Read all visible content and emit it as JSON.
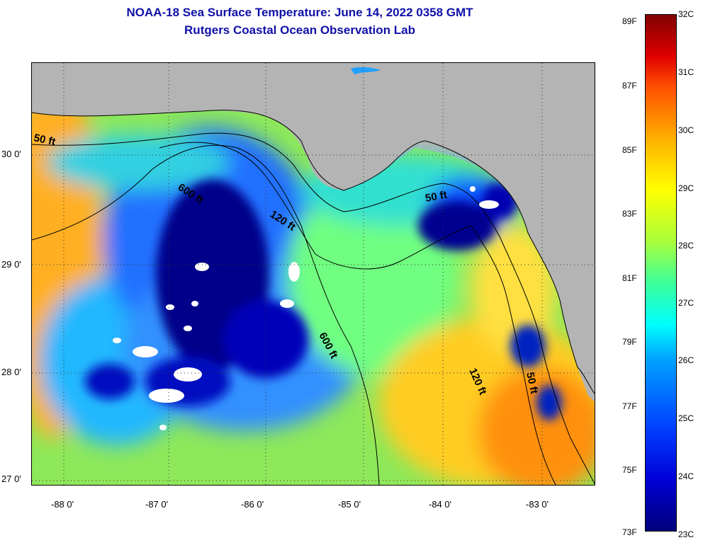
{
  "title": {
    "line1": "NOAA-18 Sea Surface Temperature:  June 14, 2022 0358 GMT",
    "line2": "Rutgers Coastal Ocean Observation Lab"
  },
  "map": {
    "contours": [
      {
        "id": "c1",
        "label": "50 ft"
      },
      {
        "id": "c2",
        "label": "600 ft"
      },
      {
        "id": "c3",
        "label": "120 ft"
      },
      {
        "id": "c4",
        "label": "50 ft"
      },
      {
        "id": "c5",
        "label": "600 ft"
      },
      {
        "id": "c6",
        "label": "120 ft"
      },
      {
        "id": "c7",
        "label": "50 ft"
      }
    ],
    "lat_labels": [
      "30 0'",
      "29 0'",
      "28 0'",
      "27 0'"
    ],
    "lon_labels": [
      "-88 0'",
      "-87 0'",
      "-86 0'",
      "-85 0'",
      "-84 0'",
      "-83 0'"
    ]
  },
  "colorbar": {
    "f_labels": [
      "89F",
      "87F",
      "85F",
      "83F",
      "81F",
      "79F",
      "77F",
      "75F",
      "73F"
    ],
    "c_labels": [
      "32C",
      "31C",
      "30C",
      "29C",
      "28C",
      "27C",
      "26C",
      "25C",
      "24C",
      "23C"
    ]
  },
  "colors": {
    "land": "#b4b4b4",
    "cold": "#00007a",
    "warm": "#ff8c00",
    "title": "#1010a8"
  }
}
